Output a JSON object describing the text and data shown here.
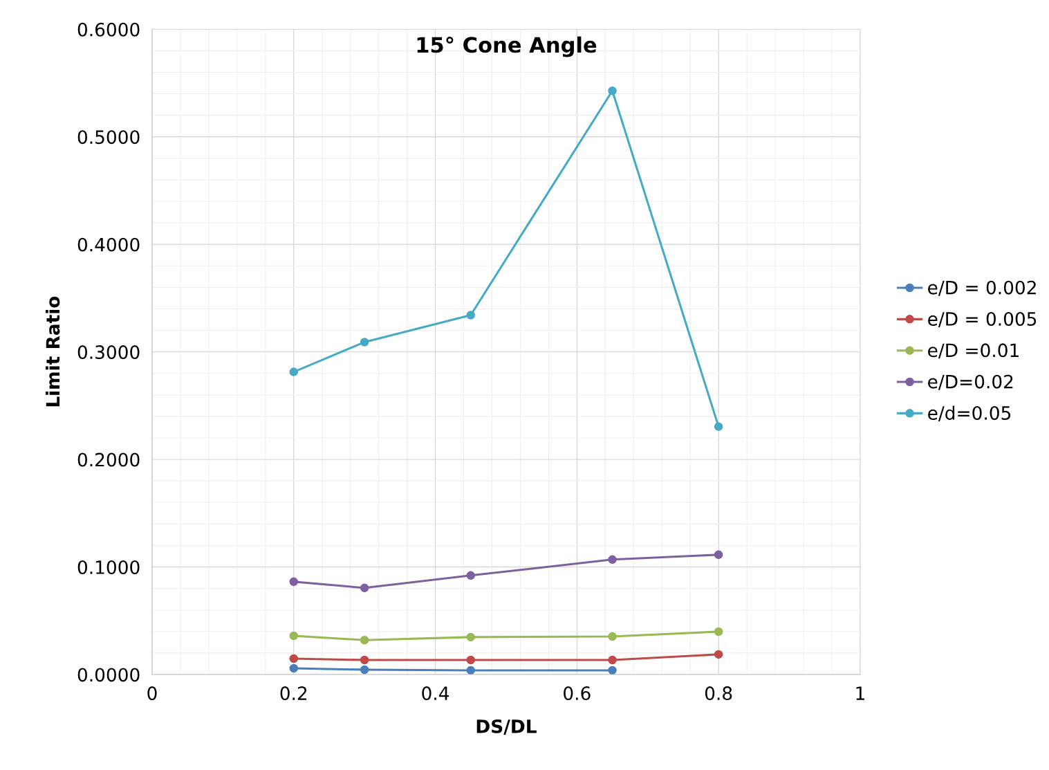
{
  "chart_data": {
    "type": "line",
    "title": "15° Cone Angle",
    "xlabel": "DS/DL",
    "ylabel": "Limit Ratio",
    "xlim": [
      0,
      1
    ],
    "xticks": [
      0,
      0.2,
      0.4,
      0.6,
      0.8,
      1
    ],
    "ylim": [
      0,
      0.6
    ],
    "yticks": [
      {
        "value": 0,
        "label": "0.0000"
      },
      {
        "value": 0.1,
        "label": "0.1000"
      },
      {
        "value": 0.2,
        "label": "0.2000"
      },
      {
        "value": 0.3,
        "label": "0.3000"
      },
      {
        "value": 0.4,
        "label": "0.4000"
      },
      {
        "value": 0.5,
        "label": "0.5000"
      },
      {
        "value": 0.6,
        "label": "0.6000"
      }
    ],
    "grid": true,
    "legend": "right",
    "marker": "circle",
    "line_style": "solid",
    "series": [
      {
        "name": "e/D = 0.002",
        "color": "#4a7ebb",
        "x": [
          0.2,
          0.3,
          0.45,
          0.65
        ],
        "values": [
          0.0058,
          0.0045,
          0.0039,
          0.0039
        ]
      },
      {
        "name": "e/D = 0.005",
        "color": "#be4b48",
        "x": [
          0.2,
          0.3,
          0.45,
          0.65,
          0.8
        ],
        "values": [
          0.0148,
          0.0135,
          0.0135,
          0.0135,
          0.0187
        ]
      },
      {
        "name": "e/D =0.01",
        "color": "#98b954",
        "x": [
          0.2,
          0.3,
          0.45,
          0.65,
          0.8
        ],
        "values": [
          0.036,
          0.032,
          0.0348,
          0.0354,
          0.0399
        ]
      },
      {
        "name": "e/D=0.02",
        "color": "#7d60a0",
        "x": [
          0.2,
          0.3,
          0.45,
          0.65,
          0.8
        ],
        "values": [
          0.0863,
          0.0805,
          0.0921,
          0.1069,
          0.1114
        ]
      },
      {
        "name": "e/d=0.05",
        "color": "#46aac5",
        "x": [
          0.2,
          0.3,
          0.45,
          0.65,
          0.8
        ],
        "values": [
          0.2814,
          0.3091,
          0.3342,
          0.5428,
          0.2305
        ]
      }
    ]
  }
}
